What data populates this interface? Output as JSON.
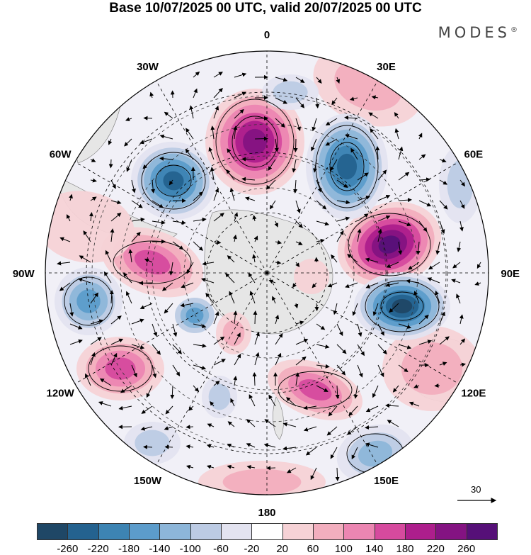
{
  "header": {
    "title": "Base 10/07/2025 00 UTC, valid 20/07/2025 00 UTC",
    "logo": "MODES",
    "logo_mark": "®"
  },
  "map": {
    "projection": "south polar stereographic",
    "longitude_labels": [
      {
        "lon": 0,
        "text": "0"
      },
      {
        "lon": 30,
        "text": "30E"
      },
      {
        "lon": 60,
        "text": "60E"
      },
      {
        "lon": 90,
        "text": "90E"
      },
      {
        "lon": 120,
        "text": "120E"
      },
      {
        "lon": 150,
        "text": "150E"
      },
      {
        "lon": 180,
        "text": "180"
      },
      {
        "lon": -150,
        "text": "150W"
      },
      {
        "lon": -120,
        "text": "120W"
      },
      {
        "lon": -90,
        "text": "90W"
      },
      {
        "lon": -60,
        "text": "60W"
      },
      {
        "lon": -30,
        "text": "30W"
      }
    ],
    "reference_vector_label": "30"
  },
  "legend": {
    "ticks": [
      "-260",
      "-220",
      "-180",
      "-140",
      "-100",
      "-60",
      "-20",
      "20",
      "60",
      "100",
      "140",
      "180",
      "220",
      "260"
    ],
    "colors": [
      "#1f4766",
      "#24628f",
      "#3d84b3",
      "#5c9ccb",
      "#8db6d9",
      "#bccbe4",
      "#e3e3f0",
      "#ffffff",
      "#f6d2d6",
      "#f2aebe",
      "#ec86b2",
      "#d64a9e",
      "#ad1e8c",
      "#841382",
      "#561078"
    ]
  },
  "colors": {
    "land": "#e6e6e6",
    "outline": "#000000"
  }
}
